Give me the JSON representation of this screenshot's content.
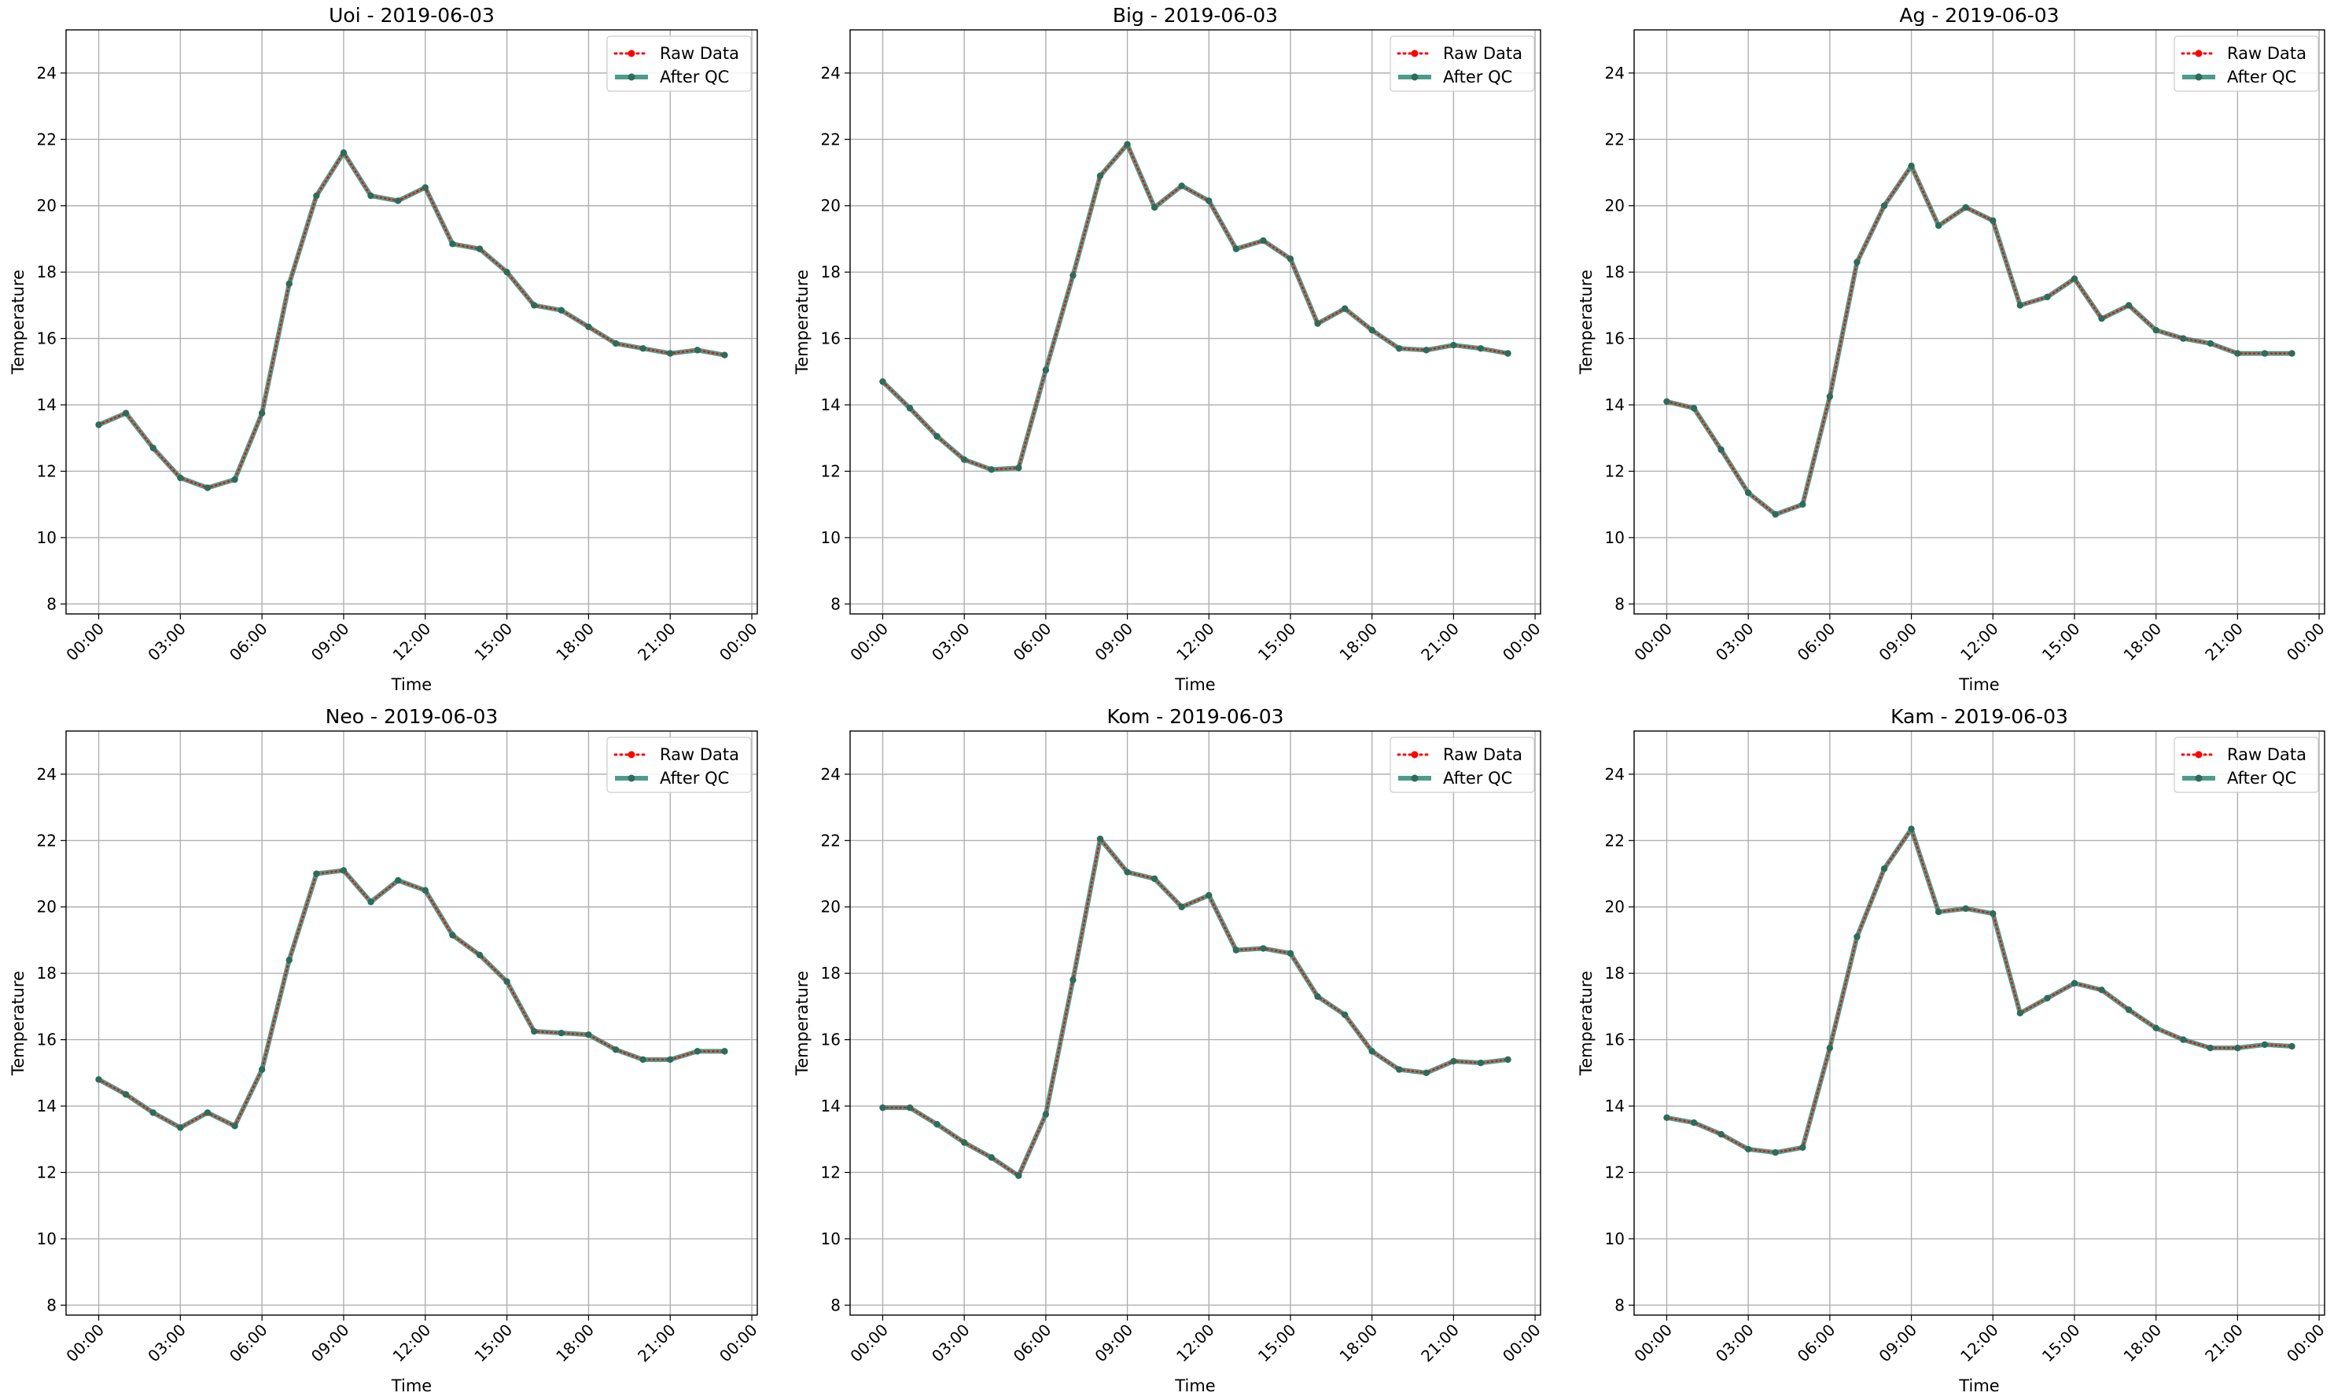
{
  "figure": {
    "legend_labels": {
      "raw": "Raw Data",
      "qc": "After QC"
    },
    "colors": {
      "raw": "#ff0000",
      "qc": "#2e8b74",
      "marker": "#2e6b5a",
      "grid": "#b0b0b0"
    }
  },
  "chart_data": [
    {
      "type": "line",
      "title": "Uoi - 2019-06-03",
      "xlabel": "Time",
      "ylabel": "Temperature",
      "xticks": [
        "00:00",
        "03:00",
        "06:00",
        "09:00",
        "12:00",
        "15:00",
        "18:00",
        "21:00",
        "00:00"
      ],
      "yticks": [
        "8",
        "10",
        "12",
        "14",
        "16",
        "18",
        "20",
        "22",
        "24"
      ],
      "xlim": [
        -1.2,
        24.2
      ],
      "ylim": [
        7.7,
        25.3
      ],
      "grid": true,
      "legend_position": "top-right",
      "x": [
        0,
        1,
        2,
        3,
        4,
        5,
        6,
        7,
        8,
        9,
        10,
        11,
        12,
        13,
        14,
        15,
        16,
        17,
        18,
        19,
        20,
        21,
        22,
        23
      ],
      "series": [
        {
          "name": "Raw Data",
          "values": [
            13.4,
            13.75,
            12.7,
            11.8,
            11.5,
            11.75,
            13.75,
            17.65,
            20.3,
            21.6,
            20.3,
            20.15,
            20.55,
            18.85,
            18.7,
            18.0,
            17.0,
            16.85,
            16.35,
            15.85,
            15.7,
            15.55,
            15.65,
            15.5
          ]
        },
        {
          "name": "After QC",
          "values": [
            13.4,
            13.75,
            12.7,
            11.8,
            11.5,
            11.75,
            13.75,
            17.65,
            20.3,
            21.6,
            20.3,
            20.15,
            20.55,
            18.85,
            18.7,
            18.0,
            17.0,
            16.85,
            16.35,
            15.85,
            15.7,
            15.55,
            15.65,
            15.5
          ]
        }
      ]
    },
    {
      "type": "line",
      "title": "Big - 2019-06-03",
      "xlabel": "Time",
      "ylabel": "Temperature",
      "xticks": [
        "00:00",
        "03:00",
        "06:00",
        "09:00",
        "12:00",
        "15:00",
        "18:00",
        "21:00",
        "00:00"
      ],
      "yticks": [
        "8",
        "10",
        "12",
        "14",
        "16",
        "18",
        "20",
        "22",
        "24"
      ],
      "xlim": [
        -1.2,
        24.2
      ],
      "ylim": [
        7.7,
        25.3
      ],
      "grid": true,
      "legend_position": "top-right",
      "x": [
        0,
        1,
        2,
        3,
        4,
        5,
        6,
        7,
        8,
        9,
        10,
        11,
        12,
        13,
        14,
        15,
        16,
        17,
        18,
        19,
        20,
        21,
        22,
        23
      ],
      "series": [
        {
          "name": "Raw Data",
          "values": [
            14.7,
            13.9,
            13.05,
            12.35,
            12.05,
            12.1,
            15.05,
            17.9,
            20.9,
            21.85,
            19.95,
            20.6,
            20.15,
            18.7,
            18.95,
            18.4,
            16.45,
            16.9,
            16.25,
            15.7,
            15.65,
            15.8,
            15.7,
            15.55
          ]
        },
        {
          "name": "After QC",
          "values": [
            14.7,
            13.9,
            13.05,
            12.35,
            12.05,
            12.1,
            15.05,
            17.9,
            20.9,
            21.85,
            19.95,
            20.6,
            20.15,
            18.7,
            18.95,
            18.4,
            16.45,
            16.9,
            16.25,
            15.7,
            15.65,
            15.8,
            15.7,
            15.55
          ]
        }
      ]
    },
    {
      "type": "line",
      "title": "Ag - 2019-06-03",
      "xlabel": "Time",
      "ylabel": "Temperature",
      "xticks": [
        "00:00",
        "03:00",
        "06:00",
        "09:00",
        "12:00",
        "15:00",
        "18:00",
        "21:00",
        "00:00"
      ],
      "yticks": [
        "8",
        "10",
        "12",
        "14",
        "16",
        "18",
        "20",
        "22",
        "24"
      ],
      "xlim": [
        -1.2,
        24.2
      ],
      "ylim": [
        7.7,
        25.3
      ],
      "grid": true,
      "legend_position": "top-right",
      "x": [
        0,
        1,
        2,
        3,
        4,
        5,
        6,
        7,
        8,
        9,
        10,
        11,
        12,
        13,
        14,
        15,
        16,
        17,
        18,
        19,
        20,
        21,
        22,
        23
      ],
      "series": [
        {
          "name": "Raw Data",
          "values": [
            14.1,
            13.9,
            12.65,
            11.35,
            10.7,
            11.0,
            14.25,
            18.3,
            20.0,
            21.2,
            19.4,
            19.95,
            19.55,
            17.0,
            17.25,
            17.8,
            16.6,
            17.0,
            16.25,
            16.0,
            15.85,
            15.55,
            15.55,
            15.55
          ]
        },
        {
          "name": "After QC",
          "values": [
            14.1,
            13.9,
            12.65,
            11.35,
            10.7,
            11.0,
            14.25,
            18.3,
            20.0,
            21.2,
            19.4,
            19.95,
            19.55,
            17.0,
            17.25,
            17.8,
            16.6,
            17.0,
            16.25,
            16.0,
            15.85,
            15.55,
            15.55,
            15.55
          ]
        }
      ]
    },
    {
      "type": "line",
      "title": "Neo - 2019-06-03",
      "xlabel": "Time",
      "ylabel": "Temperature",
      "xticks": [
        "00:00",
        "03:00",
        "06:00",
        "09:00",
        "12:00",
        "15:00",
        "18:00",
        "21:00",
        "00:00"
      ],
      "yticks": [
        "8",
        "10",
        "12",
        "14",
        "16",
        "18",
        "20",
        "22",
        "24"
      ],
      "xlim": [
        -1.2,
        24.2
      ],
      "ylim": [
        7.7,
        25.3
      ],
      "grid": true,
      "legend_position": "top-right",
      "x": [
        0,
        1,
        2,
        3,
        4,
        5,
        6,
        7,
        8,
        9,
        10,
        11,
        12,
        13,
        14,
        15,
        16,
        17,
        18,
        19,
        20,
        21,
        22,
        23
      ],
      "series": [
        {
          "name": "Raw Data",
          "values": [
            14.8,
            14.35,
            13.8,
            13.35,
            13.8,
            13.4,
            15.1,
            18.4,
            21.0,
            21.1,
            20.15,
            20.8,
            20.5,
            19.15,
            18.55,
            17.75,
            16.25,
            16.2,
            16.15,
            15.7,
            15.4,
            15.4,
            15.65,
            15.65
          ]
        },
        {
          "name": "After QC",
          "values": [
            14.8,
            14.35,
            13.8,
            13.35,
            13.8,
            13.4,
            15.1,
            18.4,
            21.0,
            21.1,
            20.15,
            20.8,
            20.5,
            19.15,
            18.55,
            17.75,
            16.25,
            16.2,
            16.15,
            15.7,
            15.4,
            15.4,
            15.65,
            15.65
          ]
        }
      ]
    },
    {
      "type": "line",
      "title": "Kom - 2019-06-03",
      "xlabel": "Time",
      "ylabel": "Temperature",
      "xticks": [
        "00:00",
        "03:00",
        "06:00",
        "09:00",
        "12:00",
        "15:00",
        "18:00",
        "21:00",
        "00:00"
      ],
      "yticks": [
        "8",
        "10",
        "12",
        "14",
        "16",
        "18",
        "20",
        "22",
        "24"
      ],
      "xlim": [
        -1.2,
        24.2
      ],
      "ylim": [
        7.7,
        25.3
      ],
      "grid": true,
      "legend_position": "top-right",
      "x": [
        0,
        1,
        2,
        3,
        4,
        5,
        6,
        7,
        8,
        9,
        10,
        11,
        12,
        13,
        14,
        15,
        16,
        17,
        18,
        19,
        20,
        21,
        22,
        23
      ],
      "series": [
        {
          "name": "Raw Data",
          "values": [
            13.95,
            13.95,
            13.45,
            12.9,
            12.45,
            11.9,
            13.75,
            17.8,
            22.05,
            21.05,
            20.85,
            20.0,
            20.35,
            18.7,
            18.75,
            18.6,
            17.3,
            16.75,
            15.65,
            15.1,
            15.0,
            15.35,
            15.3,
            15.4
          ]
        },
        {
          "name": "After QC",
          "values": [
            13.95,
            13.95,
            13.45,
            12.9,
            12.45,
            11.9,
            13.75,
            17.8,
            22.05,
            21.05,
            20.85,
            20.0,
            20.35,
            18.7,
            18.75,
            18.6,
            17.3,
            16.75,
            15.65,
            15.1,
            15.0,
            15.35,
            15.3,
            15.4
          ]
        }
      ]
    },
    {
      "type": "line",
      "title": "Kam - 2019-06-03",
      "xlabel": "Time",
      "ylabel": "Temperature",
      "xticks": [
        "00:00",
        "03:00",
        "06:00",
        "09:00",
        "12:00",
        "15:00",
        "18:00",
        "21:00",
        "00:00"
      ],
      "yticks": [
        "8",
        "10",
        "12",
        "14",
        "16",
        "18",
        "20",
        "22",
        "24"
      ],
      "xlim": [
        -1.2,
        24.2
      ],
      "ylim": [
        7.7,
        25.3
      ],
      "grid": true,
      "legend_position": "top-right",
      "x": [
        0,
        1,
        2,
        3,
        4,
        5,
        6,
        7,
        8,
        9,
        10,
        11,
        12,
        13,
        14,
        15,
        16,
        17,
        18,
        19,
        20,
        21,
        22,
        23
      ],
      "series": [
        {
          "name": "Raw Data",
          "values": [
            13.65,
            13.5,
            13.15,
            12.7,
            12.6,
            12.75,
            15.75,
            19.1,
            21.15,
            22.35,
            19.85,
            19.95,
            19.8,
            16.8,
            17.25,
            17.7,
            17.5,
            16.9,
            16.35,
            16.0,
            15.75,
            15.75,
            15.85,
            15.8
          ]
        },
        {
          "name": "After QC",
          "values": [
            13.65,
            13.5,
            13.15,
            12.7,
            12.6,
            12.75,
            15.75,
            19.1,
            21.15,
            22.35,
            19.85,
            19.95,
            19.8,
            16.8,
            17.25,
            17.7,
            17.5,
            16.9,
            16.35,
            16.0,
            15.75,
            15.75,
            15.85,
            15.8
          ]
        }
      ]
    }
  ]
}
